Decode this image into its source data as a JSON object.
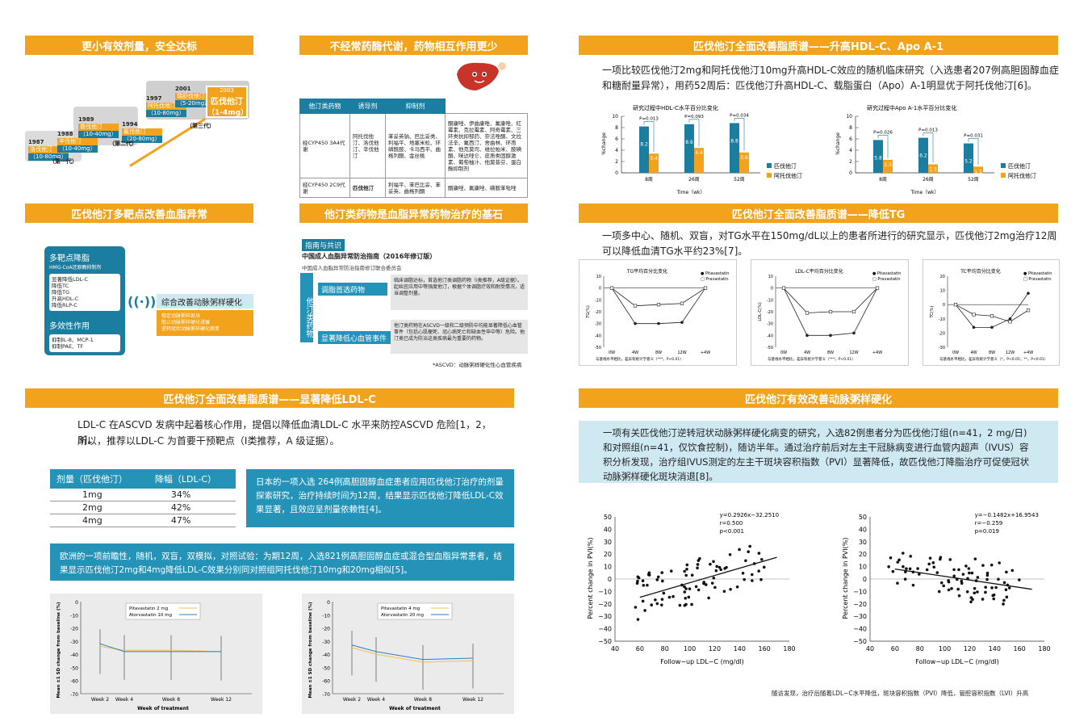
{
  "colors": {
    "orange": "#f2a21b",
    "blue": "#1b7da0",
    "teal": "#2592b8",
    "lightblue": "#cfe9f3"
  },
  "headers": {
    "h1": "更小有效剂量，安全达标",
    "h2": "不经常药酶代谢，药物相互作用更少",
    "h3": "匹伐他汀全面改善脂质谱——升高HDL-C、Apo A-1",
    "h4": "匹伐他汀多靶点改善血脂异常",
    "h5": "他汀类药物是血脂异常药物治疗的基石",
    "h6": "匹伐他汀全面改善脂质谱——降低TG",
    "h7": "匹伐他汀全面改善脂质谱——显著降低LDL-C",
    "h8": "匹伐他汀有效改善动脉粥样硬化"
  },
  "staircase": {
    "steps": [
      {
        "year": "1987",
        "drug": "洛伐他汀",
        "dose": "（10-80mg）"
      },
      {
        "year": "1988",
        "drug": "辛伐他汀",
        "dose": "（10-40mg）"
      },
      {
        "year": "1989",
        "drug": "普伐他汀",
        "dose": "（10-40mg）"
      },
      {
        "year": "1994",
        "drug": "氟伐他汀",
        "dose": "（20-80mg）"
      },
      {
        "year": "1997",
        "drug": "阿托伐他汀",
        "dose": "（10-80mg）"
      },
      {
        "year": "2001",
        "drug": "瑞舒伐他汀",
        "dose": "（5-20mg）"
      }
    ],
    "final_year": "2003",
    "final_drug": "匹伐他汀",
    "final_dose": "（1-4mg）",
    "gen1": "（第一代）",
    "gen2": "（第二代）",
    "gen3": "（第三代）"
  },
  "drug_table": {
    "headers": [
      "他汀类药物",
      "诱导剂",
      "抑制剂"
    ],
    "rows": [
      [
        "经CYP450 3A4代谢",
        "阿托伐他汀、洛伐他汀、辛伐他汀",
        "苯妥英钠、巴比妥类、利福平、地塞米松、环磷酰胺、卡马西平、曲格列酮、金丝桃",
        "酮康唑、伊曲康唑、氟康唑、红霉素、克拉霉素、阿奇霉素、三环类抗抑郁药、奈法唑酮、文拉法辛、氟西汀、舍曲林、环孢素、他克莫司、维拉帕米、胺碘酮、咪达唑仑、皮质类固醇激素、葡萄柚汁、他莫昔芬、蛋白酶抑制剂"
      ],
      [
        "经CYP450 2C9代谢",
        "匹伐他汀",
        "利福平、苯巴比妥、苯妥英、曲格列酮",
        "酮康唑、氟康唑、磺胺苯吡唑"
      ]
    ]
  },
  "hdl": {
    "text": "一项比较匹伐他汀2mg和阿托伐他汀10mg升高HDL-C效应的随机临床研究（入选患者207例高胆固醇血症和糖耐量异常），用药52周后：匹伐他汀升高HDL-C、载脂蛋白（Apo）A-1明显优于阿托伐他汀[6]。",
    "chart1_title": "研究过程中HDL-C水平百分比变化",
    "chart2_title": "研究过程中Apo A-1水平百分比变化",
    "legend_a": "匹伐他汀",
    "legend_b": "阿托伐他汀",
    "ylabel": "%change",
    "xlabel": "Time（wk）",
    "weeks": [
      "8周",
      "26周",
      "52周"
    ],
    "chart1_a": [
      8.2,
      8.6,
      8.8
    ],
    "chart1_b": [
      3.4,
      4.4,
      3.6
    ],
    "chart1_p": [
      "P=0.013",
      "P=0.093",
      "P=0.034"
    ],
    "chart2_a": [
      5.8,
      6.2,
      5.2
    ],
    "chart2_b": [
      2.3,
      1.5,
      1.1
    ],
    "chart2_p": [
      "P=0.026",
      "P=0.013",
      "P=0.031"
    ]
  },
  "multi": {
    "box1_title": "多靶点降脂",
    "box1_sub": "HMG-CoA还原酶抑制剂",
    "box1_items": [
      "显著降低LDL-C",
      "降低TC",
      "降低TG",
      "升高HDL-C",
      "降低RLP-C"
    ],
    "box2_title": "多效性作用",
    "box2_items": [
      "抑制IL-8、MCP-1",
      "抑制PAE、TF"
    ],
    "right_title": "综合改善动脉粥样硬化",
    "right_items": [
      "稳定动脉粥样斑块",
      "阻止动脉粥样硬化进展",
      "逆转冠状动脉粥样硬化病变"
    ]
  },
  "guide": {
    "tag": "指南与共识",
    "title": "中国成人血脂异常防治指南（2016年修订版）",
    "subtitle": "中国成人血脂异常防治指南修订联合委员会",
    "vertical": "他汀类药物",
    "item1": "调脂首选药物",
    "item1_text": "临床调脂达标，首选他汀类调脂药物（Ⅰ类推荐，A级证据）。起始宜应用中等强度他汀，根据个体调脂疗效和耐受情况，适当调整剂量。",
    "item2": "显著降低心血管事件",
    "item2_text": "他汀类药物在ASCVD一级和二级预防中均能显著降低心血管事件（包括心肌梗死、冠心病死亡和缺血性卒中等）危险。他汀类已成为防治这类疾病最为重要的药物。",
    "foot": "*ASCVD：动脉粥样硬化性心血管疾病"
  },
  "tg": {
    "text": "一项多中心、随机、双盲，对TG水平在150mg/dL以上的患者所进行的研究显示，匹伐他汀2mg治疗12周可以降低血清TG水平约23%[7]。",
    "c1_title": "TG平均百分比变化",
    "c2_title": "LDL-C平均百分比变化",
    "c3_title": "TC平均百分比变化",
    "legend_a": "Pitavastatin",
    "legend_b": "Pravastatin",
    "x": [
      "0W",
      "4W",
      "8W",
      "12W",
      "+4W"
    ],
    "c1_a": [
      0,
      -30,
      -30,
      -29,
      0
    ],
    "c1_b": [
      0,
      -15,
      -14,
      -13,
      0
    ],
    "c2_a": [
      0,
      -40,
      -40,
      -38,
      0
    ],
    "c2_b": [
      0,
      -21,
      -20,
      -20,
      0
    ],
    "c3_a": [
      0,
      -16,
      -16,
      -10,
      8
    ],
    "c3_b": [
      0,
      -7,
      -8,
      -12,
      -4
    ],
    "c1_ylim": [
      -50,
      10
    ],
    "c2_ylim": [
      -50,
      10
    ],
    "c3_ylim": [
      -30,
      20
    ],
    "c1_ylabel": "TG(%)",
    "c2_ylabel": "LDL-C(%)",
    "c3_ylabel": "TC(%)",
    "c12_foot": "与基线水平相比，差异有统计学意义（***，P<0.01）",
    "c3_foot": "与基线水平相比，差异有统计学意义（*，P<0.05；**，P<0.01）"
  },
  "ldl": {
    "intro1": "LDL-C 在ASCVD 发病中起着核心作用，提倡以降低血清LDL-C 水平来防控ASCVD 危险[1，2，3]。",
    "intro2": "所以，推荐以LDL-C 为首要干预靶点（Ⅰ类推荐，A 级证据）。",
    "table_headers": [
      "剂量（匹伐他汀）",
      "降幅（LDL-C）"
    ],
    "table_rows": [
      [
        "1mg",
        "34%"
      ],
      [
        "2mg",
        "42%"
      ],
      [
        "4mg",
        "47%"
      ]
    ],
    "box1": "日本的一项入选 264例高胆固醇血症患者应用匹伐他汀治疗的剂量探索研究，治疗持续时间为12周，结果显示匹伐他汀降低LDL-C效果显著，且效应呈剂量依赖性[4]。",
    "box2": "欧洲的一项前瞻性，随机，双盲，双模拟，对照试验：为期12周，入选821例高胆固醇血症或混合型血脂异常患者，结果显示匹伐他汀2mg和4mg降低LDL-C效果分别同对照组阿托伐他汀10mg和20mg相似[5]。",
    "ylabel": "Mean ±1 SD change from baseline (%)",
    "xlabel": "Week of treatment",
    "x": [
      "Week 2",
      "Week 4",
      "Week 8",
      "Week 12"
    ],
    "left_legend": [
      "Pitavastatin 2 mg",
      "Atorvastatin 10 mg"
    ],
    "right_legend": [
      "Pitavastatin 4 mg",
      "Atorvastatin 20 mg"
    ],
    "left_a": [
      -34,
      -37,
      -37,
      -38
    ],
    "left_b": [
      -32,
      -38,
      -38,
      -38
    ],
    "right_a": [
      -35,
      -40,
      -46,
      -45
    ],
    "right_b": [
      -33,
      -38,
      -44,
      -43
    ],
    "yticks": [
      "0",
      "-10",
      "-20",
      "-30",
      "-40",
      "-50",
      "-60",
      "-70"
    ]
  },
  "athero": {
    "text": "一项有关匹伐他汀逆转冠状动脉粥样硬化病变的研究，入选82例患者分为匹伐他汀组(n=41，2 mg/日)和对照组(n=41，仅饮食控制)，随访半年。通过治疗前后对左主干冠脉病变进行血管内超声（IVUS）容积分析发现，治疗组IVUS测定的左主干斑块容积指数（PVI）显著降低，故匹伐他汀降脂治疗可促使冠状动脉粥样硬化斑块消退[8]。",
    "left_eq": "y=0.2926x−32.2510",
    "left_r": "r=0.500",
    "left_p": "p<0.001",
    "right_eq": "y=−0.1482x+16.9543",
    "right_r": "r=−0.259",
    "right_p": "p=0.019",
    "ylabel": "Percent change in PVI(%)",
    "xlabel": "Follow−up LDL−C (mg/dl)",
    "xticks": [
      "40",
      "60",
      "80",
      "100",
      "120",
      "140",
      "160",
      "180"
    ],
    "yticks": [
      "50",
      "40",
      "30",
      "20",
      "10",
      "0",
      "−10",
      "−20",
      "−30",
      "−40",
      "−50"
    ],
    "foot": "随访发现，治疗后随着LDL−C水平降低，斑块容积指数（PVI）降低，管腔容积指数（LVI）升高"
  }
}
